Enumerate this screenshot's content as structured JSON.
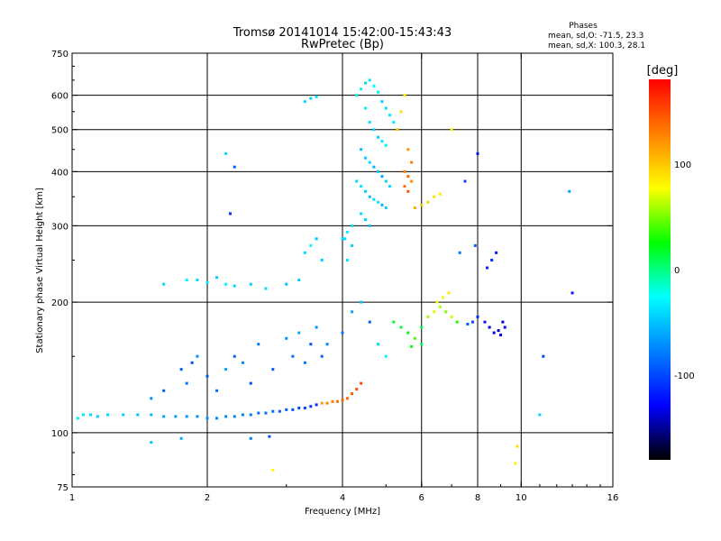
{
  "chart_data": {
    "type": "scatter",
    "title": "Tromsø 20141014 15:42:00-15:43:43",
    "subtitle": "RwPretec (Bp)",
    "xlabel": "Frequency [MHz]",
    "ylabel": "Stationary phase Virtual Height [km]",
    "x_scale": "log",
    "y_scale": "log",
    "xlim": [
      1,
      16
    ],
    "ylim": [
      75,
      750
    ],
    "xticks": [
      1,
      2,
      4,
      6,
      8,
      10,
      16
    ],
    "xtick_labels": [
      "1",
      "2",
      "4",
      "6",
      "8",
      "10",
      "16"
    ],
    "xgrid": [
      2,
      4,
      6,
      8,
      10
    ],
    "yticks": [
      75,
      100,
      200,
      300,
      400,
      500,
      600,
      750
    ],
    "ytick_labels": [
      "75",
      "100",
      "200",
      "300",
      "400",
      "500",
      "600",
      "750"
    ],
    "ygrid": [
      100,
      200,
      300,
      400,
      500,
      600
    ],
    "grid": true,
    "phase_box": {
      "title": "Phases",
      "line1": "mean, sd,O: -71.5, 23.3",
      "line2": "mean, sd,X: 100.3, 28.1"
    },
    "colorbar": {
      "label": "[deg]",
      "range": [
        -180,
        180
      ],
      "ticks": [
        100,
        0,
        -100
      ],
      "tick_labels": [
        "100",
        "0",
        "-100"
      ],
      "colors": [
        "#ff0000",
        "#ff8000",
        "#ffff00",
        "#00ff00",
        "#00ffff",
        "#0080ff",
        "#0000ff",
        "#000000"
      ]
    },
    "series": [
      {
        "points": [
          [
            1.03,
            108,
            -30
          ],
          [
            1.06,
            110,
            -35
          ],
          [
            1.1,
            110,
            -40
          ],
          [
            1.14,
            109,
            -45
          ],
          [
            1.2,
            110,
            -40
          ],
          [
            1.3,
            110,
            -45
          ],
          [
            1.4,
            110,
            -50
          ],
          [
            1.5,
            110,
            -55
          ],
          [
            1.6,
            109,
            -60
          ],
          [
            1.7,
            109,
            -65
          ],
          [
            1.8,
            109,
            -70
          ],
          [
            1.9,
            109,
            -70
          ],
          [
            2.0,
            108,
            -72
          ],
          [
            2.1,
            108,
            -74
          ],
          [
            2.2,
            109,
            -75
          ],
          [
            2.3,
            109,
            -76
          ],
          [
            2.4,
            110,
            -78
          ],
          [
            2.5,
            110,
            -80
          ],
          [
            2.6,
            111,
            -82
          ],
          [
            2.7,
            111,
            -84
          ],
          [
            2.8,
            112,
            -86
          ],
          [
            2.9,
            112,
            -88
          ],
          [
            3.0,
            113,
            -90
          ],
          [
            3.1,
            113,
            -94
          ],
          [
            3.2,
            114,
            -98
          ],
          [
            3.3,
            114,
            -102
          ],
          [
            3.4,
            115,
            -106
          ],
          [
            3.5,
            116,
            -112
          ],
          [
            3.6,
            117,
            120
          ],
          [
            3.7,
            117,
            125
          ],
          [
            3.8,
            118,
            130
          ],
          [
            3.9,
            118,
            135
          ],
          [
            4.0,
            119,
            138
          ],
          [
            4.1,
            120,
            140
          ],
          [
            4.2,
            123,
            145
          ],
          [
            4.3,
            126,
            148
          ],
          [
            4.4,
            130,
            150
          ]
        ]
      },
      {
        "points": [
          [
            4.3,
            600,
            -20
          ],
          [
            4.4,
            620,
            -30
          ],
          [
            4.5,
            640,
            -40
          ],
          [
            4.6,
            650,
            -35
          ],
          [
            4.7,
            630,
            -25
          ],
          [
            4.8,
            610,
            -30
          ],
          [
            4.9,
            580,
            -45
          ],
          [
            5.0,
            560,
            -40
          ],
          [
            5.1,
            540,
            -35
          ],
          [
            5.2,
            520,
            -30
          ],
          [
            4.5,
            560,
            -30
          ],
          [
            4.6,
            520,
            -35
          ],
          [
            4.7,
            500,
            -40
          ],
          [
            4.8,
            480,
            -45
          ],
          [
            4.9,
            470,
            -35
          ],
          [
            5.0,
            460,
            -30
          ],
          [
            4.4,
            450,
            -50
          ],
          [
            4.5,
            430,
            -45
          ],
          [
            4.6,
            420,
            -40
          ],
          [
            4.7,
            410,
            -55
          ],
          [
            4.8,
            400,
            -50
          ],
          [
            4.9,
            390,
            -60
          ],
          [
            5.0,
            380,
            -45
          ],
          [
            5.1,
            370,
            -40
          ],
          [
            4.3,
            380,
            -40
          ],
          [
            4.4,
            370,
            -35
          ],
          [
            4.5,
            360,
            -45
          ],
          [
            4.6,
            350,
            -50
          ],
          [
            4.7,
            345,
            -40
          ],
          [
            4.8,
            340,
            -35
          ],
          [
            4.9,
            335,
            -55
          ],
          [
            5.0,
            330,
            -45
          ],
          [
            4.4,
            320,
            -40
          ],
          [
            4.5,
            310,
            -45
          ],
          [
            4.6,
            300,
            -50
          ],
          [
            4.2,
            300,
            -35
          ],
          [
            4.1,
            290,
            -30
          ],
          [
            4.0,
            280,
            -40
          ]
        ]
      },
      {
        "points": [
          [
            5.5,
            400,
            130
          ],
          [
            5.6,
            390,
            140
          ],
          [
            5.5,
            370,
            135
          ],
          [
            5.6,
            360,
            145
          ],
          [
            5.7,
            380,
            125
          ],
          [
            5.8,
            330,
            110
          ],
          [
            6.0,
            335,
            100
          ],
          [
            6.2,
            340,
            95
          ],
          [
            6.4,
            350,
            90
          ],
          [
            6.6,
            355,
            85
          ],
          [
            5.5,
            600,
            80
          ],
          [
            5.4,
            550,
            90
          ],
          [
            5.6,
            450,
            120
          ],
          [
            5.7,
            420,
            130
          ],
          [
            5.3,
            500,
            100
          ]
        ]
      },
      {
        "points": [
          [
            5.2,
            180,
            20
          ],
          [
            5.4,
            175,
            15
          ],
          [
            5.6,
            170,
            25
          ],
          [
            5.8,
            165,
            40
          ],
          [
            6.0,
            175,
            10
          ],
          [
            6.2,
            185,
            60
          ],
          [
            6.4,
            190,
            70
          ],
          [
            6.6,
            195,
            60
          ],
          [
            6.8,
            190,
            50
          ],
          [
            7.0,
            185,
            65
          ],
          [
            6.5,
            200,
            80
          ],
          [
            6.7,
            205,
            75
          ],
          [
            7.2,
            180,
            30
          ],
          [
            6.0,
            160,
            10
          ],
          [
            5.7,
            158,
            20
          ],
          [
            6.9,
            210,
            85
          ]
        ]
      },
      {
        "points": [
          [
            8.3,
            180,
            -120
          ],
          [
            8.5,
            175,
            -130
          ],
          [
            8.7,
            170,
            -135
          ],
          [
            8.9,
            172,
            -140
          ],
          [
            9.0,
            168,
            -130
          ],
          [
            9.2,
            175,
            -125
          ],
          [
            8.0,
            185,
            -110
          ],
          [
            7.8,
            180,
            -100
          ],
          [
            7.6,
            178,
            -95
          ],
          [
            9.1,
            180,
            -135
          ],
          [
            8.8,
            260,
            -120
          ],
          [
            8.6,
            250,
            -110
          ],
          [
            8.4,
            240,
            -115
          ],
          [
            7.9,
            270,
            -90
          ],
          [
            7.5,
            380,
            -100
          ],
          [
            7.3,
            260,
            -80
          ]
        ]
      },
      {
        "points": [
          [
            1.6,
            220,
            -40
          ],
          [
            1.8,
            225,
            -30
          ],
          [
            1.9,
            225,
            -40
          ],
          [
            2.0,
            222,
            -35
          ],
          [
            2.1,
            228,
            -45
          ],
          [
            2.2,
            220,
            -30
          ],
          [
            2.3,
            218,
            -40
          ],
          [
            2.5,
            220,
            -45
          ],
          [
            2.7,
            215,
            -40
          ],
          [
            3.0,
            220,
            -50
          ],
          [
            3.2,
            225,
            -45
          ],
          [
            3.3,
            580,
            -40
          ],
          [
            3.4,
            590,
            -45
          ],
          [
            3.5,
            595,
            -35
          ],
          [
            2.2,
            440,
            -40
          ],
          [
            2.3,
            410,
            -90
          ],
          [
            2.25,
            320,
            -110
          ],
          [
            3.3,
            260,
            -40
          ],
          [
            3.4,
            270,
            -30
          ],
          [
            3.5,
            280,
            -50
          ],
          [
            3.6,
            250,
            -45
          ],
          [
            4.05,
            280,
            -40
          ],
          [
            4.2,
            270,
            -45
          ],
          [
            4.1,
            250,
            -35
          ]
        ]
      },
      {
        "points": [
          [
            1.75,
            140,
            -90
          ],
          [
            1.8,
            130,
            -80
          ],
          [
            1.85,
            145,
            -100
          ],
          [
            1.9,
            150,
            -70
          ],
          [
            2.0,
            135,
            -95
          ],
          [
            2.1,
            125,
            -85
          ],
          [
            2.2,
            140,
            -60
          ],
          [
            2.3,
            150,
            -90
          ],
          [
            2.4,
            145,
            -75
          ],
          [
            2.5,
            130,
            -100
          ],
          [
            2.6,
            160,
            -80
          ],
          [
            2.8,
            140,
            -90
          ],
          [
            3.0,
            165,
            -70
          ],
          [
            3.1,
            150,
            -85
          ],
          [
            3.2,
            170,
            -60
          ],
          [
            3.3,
            145,
            -80
          ],
          [
            3.4,
            160,
            -95
          ],
          [
            3.5,
            175,
            -70
          ],
          [
            3.6,
            150,
            -90
          ],
          [
            3.7,
            160,
            -75
          ],
          [
            4.0,
            170,
            -80
          ],
          [
            4.2,
            190,
            -60
          ],
          [
            4.4,
            200,
            -50
          ],
          [
            4.6,
            180,
            -90
          ],
          [
            4.8,
            160,
            -40
          ],
          [
            5.0,
            150,
            -30
          ],
          [
            1.5,
            120,
            -70
          ],
          [
            1.6,
            125,
            -90
          ]
        ]
      },
      {
        "points": [
          [
            1.5,
            95,
            -50
          ],
          [
            1.75,
            97,
            -60
          ],
          [
            2.5,
            97,
            -80
          ],
          [
            2.75,
            98,
            -100
          ],
          [
            2.8,
            82,
            80
          ],
          [
            11.0,
            110,
            -40
          ],
          [
            11.2,
            150,
            -100
          ],
          [
            9.7,
            85,
            80
          ],
          [
            9.8,
            93,
            90
          ],
          [
            13.0,
            210,
            -120
          ],
          [
            12.8,
            360,
            -60
          ],
          [
            8.0,
            440,
            -120
          ],
          [
            7.0,
            500,
            80
          ]
        ]
      }
    ]
  }
}
